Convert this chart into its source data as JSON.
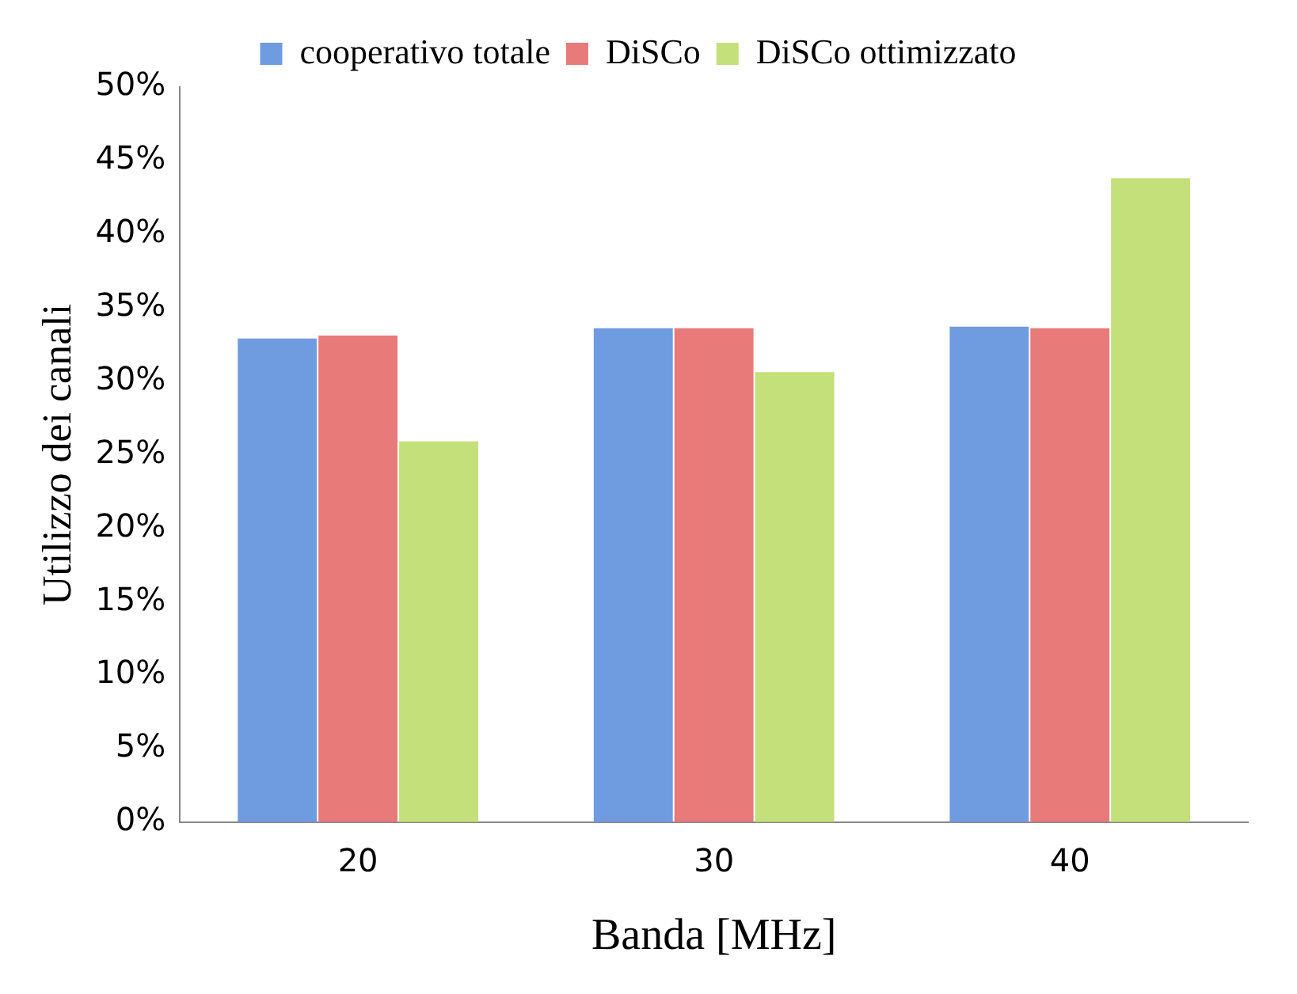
{
  "chart_data": {
    "type": "bar",
    "xlabel": "Banda [MHz]",
    "ylabel": "Utilizzo dei canali",
    "categories": [
      "20",
      "30",
      "40"
    ],
    "series": [
      {
        "name": "cooperativo totale",
        "color": "#6f9be0",
        "values": [
          32.9,
          33.6,
          33.7
        ]
      },
      {
        "name": "DiSCo",
        "color": "#e87a7a",
        "values": [
          33.1,
          33.6,
          33.6
        ]
      },
      {
        "name": "DiSCo ottimizzato",
        "color": "#c4e07a",
        "values": [
          25.9,
          30.6,
          43.8
        ]
      }
    ],
    "ylim": [
      0,
      50
    ],
    "yticks": [
      {
        "value": 0,
        "label": "0%"
      },
      {
        "value": 5,
        "label": "5%"
      },
      {
        "value": 10,
        "label": "10%"
      },
      {
        "value": 15,
        "label": "15%"
      },
      {
        "value": 20,
        "label": "20%"
      },
      {
        "value": 25,
        "label": "25%"
      },
      {
        "value": 30,
        "label": "30%"
      },
      {
        "value": 35,
        "label": "35%"
      },
      {
        "value": 40,
        "label": "40%"
      },
      {
        "value": 45,
        "label": "45%"
      },
      {
        "value": 50,
        "label": "50%"
      }
    ],
    "grid": false,
    "legend": "top"
  }
}
